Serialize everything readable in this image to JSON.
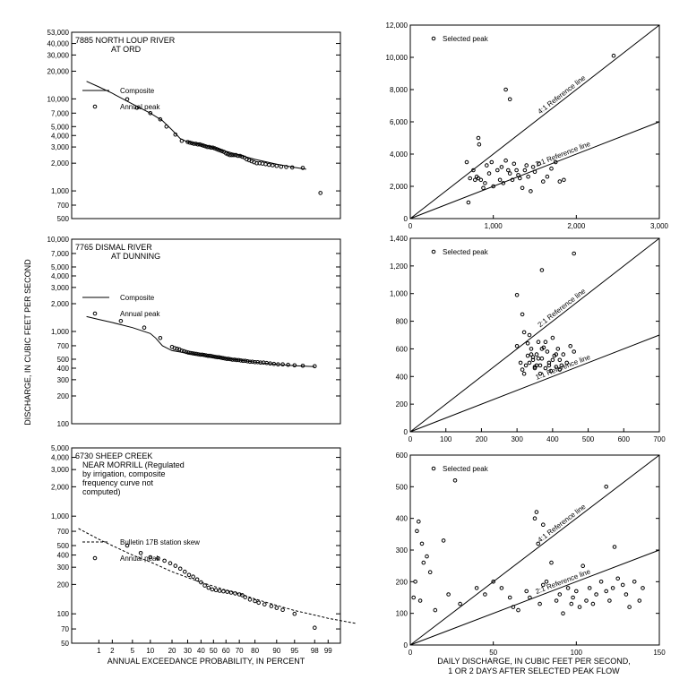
{
  "page": {
    "ylabel": "DISCHARGE, IN CUBIC FEET PER SECOND",
    "left_xlabel": "ANNUAL EXCEEDANCE PROBABILITY, IN PERCENT",
    "right_xlabel_line1": "DAILY DISCHARGE, IN CUBIC FEET PER SECOND,",
    "right_xlabel_line2": "1 OR 2 DAYS AFTER SELECTED PEAK FLOW"
  },
  "chart_data": [
    {
      "id": "freq-north-loup",
      "type": "line",
      "title_lines": [
        "7885 NORTH LOUP RIVER",
        "AT ORD"
      ],
      "xscale": "probability",
      "xticks": [],
      "yscale": "log",
      "ylim": [
        500,
        53000
      ],
      "yticks": [
        53000,
        40000,
        30000,
        20000,
        10000,
        7000,
        5000,
        4000,
        3000,
        2000,
        1000,
        700,
        500
      ],
      "ytick_labels": [
        "53,000",
        "40,000",
        "30,000",
        "20,000",
        "10,000",
        "7,000",
        "5,000",
        "4,000",
        "3,000",
        "2,000",
        "1,000",
        "700",
        "500"
      ],
      "legend": [
        {
          "label": "Composite",
          "style": "solid"
        },
        {
          "label": "Annual peak",
          "style": "marker"
        }
      ],
      "curve": {
        "style": "solid",
        "x": [
          97,
          95,
          90,
          80,
          70,
          60,
          50,
          40,
          30,
          25,
          20,
          15,
          10,
          5,
          2,
          1,
          0.5
        ],
        "y": [
          1720,
          1800,
          1950,
          2200,
          2450,
          2700,
          2950,
          3200,
          3400,
          3700,
          4600,
          5800,
          7000,
          8800,
          11500,
          13500,
          15500
        ]
      },
      "points": {
        "x": [
          98.5,
          96.5,
          94.5,
          93,
          91.5,
          90,
          88.5,
          87,
          85.5,
          84,
          82.5,
          81,
          79.5,
          78,
          76.5,
          75,
          73.5,
          72,
          70.5,
          69,
          67.5,
          66,
          64.5,
          63,
          61.5,
          60,
          58.5,
          57,
          55.5,
          54,
          52.5,
          51,
          49.5,
          48,
          46.5,
          45,
          43.5,
          42,
          40.5,
          39,
          37.5,
          36,
          34.5,
          33,
          31.5,
          30,
          26,
          22,
          17,
          14,
          10,
          6,
          4
        ],
        "y": [
          950,
          1780,
          1800,
          1820,
          1830,
          1870,
          1900,
          1920,
          1950,
          1980,
          2000,
          2000,
          2050,
          2100,
          2150,
          2200,
          2300,
          2350,
          2400,
          2400,
          2450,
          2450,
          2450,
          2450,
          2500,
          2550,
          2650,
          2700,
          2750,
          2800,
          2850,
          2900,
          2950,
          2950,
          3000,
          3000,
          3050,
          3100,
          3150,
          3200,
          3200,
          3250,
          3250,
          3300,
          3350,
          3400,
          3500,
          4100,
          5000,
          6000,
          7000,
          8000,
          9900
        ]
      }
    },
    {
      "id": "scatter-north-loup",
      "type": "scatter",
      "legend": [
        {
          "label": "Selected peak",
          "style": "marker"
        }
      ],
      "xlim": [
        0,
        3000
      ],
      "ylim": [
        0,
        12000
      ],
      "xticks": [
        0,
        1000,
        2000,
        3000
      ],
      "xtick_labels": [
        "0",
        "1,000",
        "2,000",
        "3,000"
      ],
      "yticks": [
        0,
        2000,
        4000,
        6000,
        8000,
        10000,
        12000
      ],
      "ytick_labels": [
        "0",
        "2,000",
        "4,000",
        "6,000",
        "8,000",
        "10,000",
        "12,000"
      ],
      "reference_lines": [
        {
          "label": "4:1 Reference line",
          "slope": 4
        },
        {
          "label": "2:1 Reference line",
          "slope": 2
        }
      ],
      "points": {
        "x": [
          680,
          700,
          720,
          760,
          780,
          800,
          820,
          850,
          880,
          900,
          920,
          950,
          980,
          1000,
          1050,
          1080,
          1100,
          1120,
          1150,
          1180,
          1200,
          1230,
          1250,
          1280,
          1300,
          1320,
          1350,
          1380,
          1400,
          1420,
          1450,
          1480,
          1500,
          1550,
          1600,
          1650,
          1700,
          1750,
          1800,
          1850,
          1150,
          1200,
          820,
          830,
          2450
        ],
        "y": [
          3500,
          1000,
          2500,
          3000,
          2400,
          2600,
          2500,
          2400,
          1900,
          2200,
          3300,
          2800,
          3500,
          2000,
          3000,
          2400,
          3200,
          2200,
          3600,
          3000,
          2800,
          2400,
          3400,
          3000,
          2700,
          2500,
          1900,
          3000,
          3300,
          2600,
          1700,
          3200,
          2900,
          3400,
          2300,
          2600,
          3100,
          3500,
          2300,
          2400,
          8000,
          7400,
          5000,
          4600,
          10100
        ]
      }
    },
    {
      "id": "freq-dismal",
      "type": "line",
      "title_lines": [
        "7765 DISMAL RIVER",
        "AT DUNNING"
      ],
      "xscale": "probability",
      "xticks": [],
      "yscale": "log",
      "ylim": [
        100,
        10000
      ],
      "yticks": [
        10000,
        7000,
        5000,
        4000,
        3000,
        2000,
        1000,
        700,
        500,
        400,
        300,
        200,
        100
      ],
      "ytick_labels": [
        "10,000",
        "7,000",
        "5,000",
        "4,000",
        "3,000",
        "2,000",
        "1,000",
        "700",
        "500",
        "400",
        "300",
        "200",
        "100"
      ],
      "legend": [
        {
          "label": "Composite",
          "style": "solid"
        },
        {
          "label": "Annual peak",
          "style": "marker"
        }
      ],
      "curve": {
        "style": "solid",
        "x": [
          98,
          95,
          90,
          80,
          70,
          60,
          50,
          40,
          30,
          20,
          15,
          12,
          10,
          5,
          2,
          1,
          0.5
        ],
        "y": [
          415,
          425,
          440,
          465,
          490,
          510,
          530,
          555,
          580,
          620,
          700,
          850,
          950,
          1100,
          1250,
          1350,
          1450
        ]
      },
      "points": {
        "x": [
          98,
          96.5,
          95,
          93.5,
          92,
          90.5,
          89,
          87.5,
          86,
          84.5,
          83,
          81.5,
          80,
          78.5,
          77,
          75.5,
          74,
          72.5,
          71,
          69.5,
          68,
          66.5,
          65,
          63.5,
          62,
          60.5,
          59,
          57.5,
          56,
          54.5,
          53,
          51.5,
          50,
          48.5,
          47,
          45.5,
          44,
          42.5,
          41,
          39.5,
          38,
          36.5,
          35,
          33.5,
          32,
          30.5,
          29,
          27.5,
          26,
          24.5,
          23,
          21.5,
          20,
          14,
          8,
          3
        ],
        "y": [
          420,
          425,
          430,
          435,
          440,
          440,
          445,
          450,
          455,
          460,
          460,
          465,
          465,
          470,
          470,
          475,
          480,
          480,
          485,
          490,
          490,
          495,
          495,
          500,
          505,
          505,
          510,
          515,
          520,
          525,
          525,
          530,
          535,
          540,
          545,
          545,
          550,
          555,
          560,
          560,
          565,
          570,
          575,
          580,
          585,
          590,
          600,
          610,
          620,
          640,
          650,
          660,
          680,
          850,
          1100,
          1300
        ]
      }
    },
    {
      "id": "scatter-dismal",
      "type": "scatter",
      "legend": [
        {
          "label": "Selected peak",
          "style": "marker"
        }
      ],
      "xlim": [
        0,
        700
      ],
      "ylim": [
        0,
        1400
      ],
      "xticks": [
        0,
        100,
        200,
        300,
        400,
        500,
        600,
        700
      ],
      "xtick_labels": [
        "0",
        "100",
        "200",
        "300",
        "400",
        "500",
        "600",
        "700"
      ],
      "yticks": [
        0,
        200,
        400,
        600,
        800,
        1000,
        1200,
        1400
      ],
      "ytick_labels": [
        "0",
        "200",
        "400",
        "600",
        "800",
        "1,000",
        "1,200",
        "1,400"
      ],
      "reference_lines": [
        {
          "label": "2:1 Reference line",
          "slope": 2
        },
        {
          "label": "1:1 Reference line",
          "slope": 1
        }
      ],
      "points": {
        "x": [
          300,
          310,
          315,
          320,
          325,
          330,
          335,
          340,
          345,
          350,
          355,
          360,
          365,
          370,
          375,
          380,
          385,
          390,
          395,
          400,
          405,
          410,
          415,
          420,
          425,
          430,
          440,
          450,
          460,
          320,
          330,
          340,
          350,
          360,
          370,
          380,
          390,
          400,
          410,
          420,
          335,
          345,
          355,
          365,
          300,
          315,
          370,
          460
        ],
        "y": [
          620,
          500,
          450,
          420,
          480,
          550,
          700,
          600,
          520,
          470,
          560,
          650,
          480,
          530,
          610,
          460,
          580,
          500,
          440,
          680,
          550,
          470,
          600,
          520,
          480,
          560,
          500,
          620,
          580,
          720,
          640,
          560,
          460,
          530,
          600,
          650,
          480,
          520,
          560,
          450,
          500,
          540,
          480,
          420,
          990,
          850,
          1170,
          1290
        ]
      }
    },
    {
      "id": "freq-sheep",
      "type": "line",
      "title_lines": [
        "6730 SHEEP CREEK",
        "NEAR MORRILL (Regulated",
        "by irrigation, composite",
        "frequency curve not",
        "computed)"
      ],
      "xscale": "probability",
      "xticks": [
        99,
        98,
        95,
        90,
        80,
        70,
        60,
        50,
        40,
        30,
        20,
        10,
        5,
        2,
        1
      ],
      "xtick_labels": [
        "99",
        "98",
        "95",
        "90",
        "80",
        "70",
        "60",
        "50",
        "40",
        "30",
        "20",
        "10",
        "5",
        "2",
        "1"
      ],
      "yscale": "log",
      "ylim": [
        50,
        5000
      ],
      "yticks": [
        5000,
        4000,
        3000,
        2000,
        1000,
        700,
        500,
        400,
        300,
        200,
        100,
        70,
        50
      ],
      "ytick_labels": [
        "5,000",
        "4,000",
        "3,000",
        "2,000",
        "1,000",
        "700",
        "500",
        "400",
        "300",
        "200",
        "100",
        "70",
        "50"
      ],
      "legend": [
        {
          "label": "Bulletin 17B station skew",
          "style": "dashed"
        },
        {
          "label": "Annual peak",
          "style": "marker"
        }
      ],
      "curve": {
        "style": "dashed",
        "x": [
          99.8,
          99,
          98,
          95,
          90,
          80,
          70,
          60,
          50,
          40,
          30,
          20,
          10,
          5,
          2,
          1,
          0.3
        ],
        "y": [
          80,
          90,
          97,
          108,
          122,
          142,
          160,
          175,
          192,
          210,
          235,
          270,
          340,
          400,
          500,
          580,
          750
        ]
      },
      "points": {
        "x": [
          98,
          95,
          92,
          90,
          88,
          85,
          82,
          80,
          77,
          74,
          72,
          70,
          67,
          64,
          61,
          58,
          55,
          52,
          49,
          46,
          43,
          40,
          37,
          34,
          31,
          28,
          25,
          22,
          19,
          16,
          13,
          10,
          7,
          4
        ],
        "y": [
          72,
          100,
          110,
          115,
          120,
          125,
          130,
          135,
          140,
          148,
          155,
          158,
          162,
          165,
          168,
          170,
          172,
          175,
          178,
          185,
          195,
          210,
          225,
          240,
          250,
          270,
          290,
          310,
          330,
          350,
          370,
          380,
          420,
          500
        ]
      }
    },
    {
      "id": "scatter-sheep",
      "type": "scatter",
      "legend": [
        {
          "label": "Selected peak",
          "style": "marker"
        }
      ],
      "xlim": [
        0,
        150
      ],
      "ylim": [
        0,
        600
      ],
      "xticks": [
        0,
        50,
        100,
        150
      ],
      "xtick_labels": [
        "0",
        "50",
        "100",
        "150"
      ],
      "yticks": [
        0,
        100,
        200,
        300,
        400,
        500,
        600
      ],
      "ytick_labels": [
        "0",
        "100",
        "200",
        "300",
        "400",
        "500",
        "600"
      ],
      "reference_lines": [
        {
          "label": "4:1 Reference line",
          "slope": 4
        },
        {
          "label": "2:1 Reference line",
          "slope": 2
        }
      ],
      "points": {
        "x": [
          2,
          3,
          4,
          5,
          6,
          7,
          8,
          10,
          12,
          15,
          20,
          23,
          27,
          30,
          40,
          45,
          50,
          55,
          60,
          62,
          65,
          70,
          72,
          75,
          77,
          78,
          80,
          82,
          85,
          88,
          90,
          92,
          95,
          97,
          98,
          100,
          102,
          104,
          106,
          108,
          110,
          112,
          115,
          118,
          120,
          122,
          125,
          128,
          130,
          132,
          135,
          138,
          140,
          76,
          80,
          118,
          123
        ],
        "y": [
          150,
          200,
          360,
          390,
          140,
          320,
          260,
          280,
          230,
          110,
          330,
          160,
          520,
          130,
          180,
          160,
          200,
          180,
          150,
          120,
          110,
          170,
          150,
          400,
          320,
          130,
          190,
          200,
          260,
          140,
          160,
          100,
          180,
          130,
          150,
          170,
          120,
          250,
          140,
          180,
          130,
          160,
          200,
          170,
          140,
          180,
          210,
          190,
          160,
          120,
          200,
          140,
          180,
          420,
          380,
          500,
          310
        ]
      }
    }
  ]
}
